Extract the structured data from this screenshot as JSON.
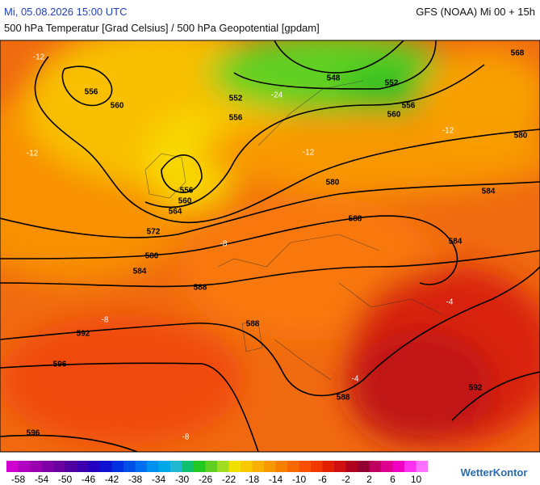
{
  "header": {
    "datetime": "Mi, 05.08.2026 15:00 UTC",
    "model_run": "GFS (NOAA) Mi 00 + 15h",
    "subtitle": "500 hPa Temperatur [Grad Celsius] / 500 hPa Geopotential [gpdam]"
  },
  "geopotential_labels": [
    556,
    560,
    552,
    556,
    548,
    552,
    556,
    560,
    568,
    580,
    556,
    560,
    564,
    572,
    580,
    584,
    588,
    580,
    584,
    588,
    584,
    592,
    596,
    588,
    588,
    592,
    596
  ],
  "temperature_labels": [
    -12,
    -12,
    -24,
    -12,
    -12,
    -8,
    -8,
    -4,
    -4,
    -8
  ],
  "colorbar": {
    "labels": [
      -58,
      -54,
      -50,
      -46,
      -42,
      -38,
      -34,
      -30,
      -26,
      -22,
      -18,
      -14,
      -10,
      -6,
      -2,
      2,
      6,
      10
    ]
  },
  "brand": "WetterKontor"
}
